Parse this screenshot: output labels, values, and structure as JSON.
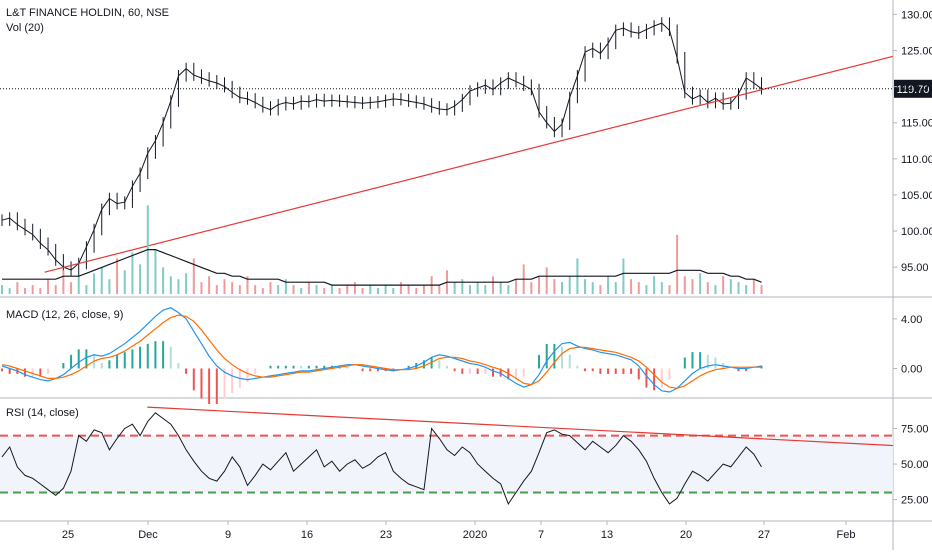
{
  "chart_data": {
    "type": "line",
    "symbol_title": "L&T FINANCE HOLDIN, 60, NSE",
    "volume_label": "Vol (20)",
    "last_price_label": "119.70",
    "x_ticks": [
      "25",
      "Dec",
      "9",
      "16",
      "23",
      "2020",
      "7",
      "13",
      "20",
      "27",
      "Feb"
    ],
    "price_axis": {
      "ticks": [
        "130.00",
        "125.00",
        "120.00",
        "115.00",
        "110.00",
        "105.00",
        "100.00",
        "95.00"
      ],
      "range": [
        91,
        132
      ]
    },
    "price_series": {
      "name": "Close",
      "values": [
        101.5,
        101.8,
        100.9,
        100.2,
        99.5,
        98.3,
        97.4,
        96.0,
        95.0,
        94.6,
        95.5,
        97.8,
        100.2,
        103.0,
        104.5,
        103.8,
        104.0,
        106.2,
        108.0,
        110.8,
        112.5,
        115.0,
        118.0,
        121.5,
        122.5,
        121.6,
        121.2,
        120.8,
        120.5,
        120.0,
        119.2,
        118.5,
        118.3,
        117.8,
        117.2,
        116.8,
        117.5,
        117.8,
        117.6,
        118.0,
        117.9,
        118.2,
        118.0,
        118.1,
        118.0,
        117.9,
        117.8,
        117.7,
        117.8,
        117.9,
        118.1,
        118.3,
        118.2,
        118.0,
        117.8,
        117.6,
        117.2,
        116.9,
        116.8,
        117.3,
        118.2,
        119.4,
        119.8,
        120.2,
        119.6,
        120.5,
        121.2,
        120.7,
        120.2,
        119.6,
        116.5,
        115.0,
        113.8,
        114.8,
        118.5,
        121.5,
        124.8,
        125.3,
        124.6,
        126.0,
        127.8,
        128.1,
        127.6,
        127.4,
        127.9,
        128.4,
        128.8,
        127.8,
        124.0,
        119.2,
        118.3,
        118.8,
        117.8,
        118.4,
        117.6,
        117.7,
        119.0,
        121.2,
        120.5,
        119.7
      ]
    },
    "trendline_price": {
      "from": [
        0.05,
        94.3
      ],
      "to": [
        1.0,
        124.2
      ]
    },
    "volume_series": {
      "name": "Volume",
      "values": [
        3,
        2,
        4,
        2,
        3,
        2,
        5,
        3,
        8,
        4,
        6,
        3,
        7,
        9,
        5,
        12,
        8,
        14,
        10,
        30,
        15,
        9,
        6,
        5,
        7,
        12,
        4,
        6,
        3,
        5,
        4,
        3,
        6,
        3,
        2,
        4,
        3,
        5,
        3,
        2,
        4,
        3,
        2,
        3,
        2,
        3,
        4,
        2,
        3,
        2,
        3,
        2,
        4,
        3,
        2,
        3,
        6,
        3,
        8,
        4,
        5,
        3,
        4,
        3,
        6,
        4,
        3,
        5,
        10,
        4,
        6,
        9,
        5,
        4,
        6,
        12,
        5,
        4,
        3,
        6,
        4,
        12,
        5,
        4,
        3,
        6,
        4,
        3,
        20,
        6,
        5,
        7,
        4,
        3,
        6,
        5,
        4,
        3,
        5,
        3
      ],
      "ma": [
        5,
        5,
        5,
        5,
        5,
        5,
        5,
        5,
        6,
        6,
        6,
        7,
        8,
        9,
        10,
        11,
        12,
        13,
        14,
        15,
        15,
        14,
        13,
        12,
        11,
        10,
        9,
        8,
        7,
        7,
        6,
        6,
        5,
        5,
        5,
        5,
        5,
        4,
        4,
        4,
        4,
        4,
        4,
        3,
        3,
        3,
        3,
        3,
        3,
        3,
        3,
        3,
        3,
        3,
        3,
        3,
        3,
        3,
        4,
        4,
        4,
        4,
        4,
        4,
        4,
        4,
        4,
        5,
        5,
        5,
        6,
        6,
        6,
        6,
        6,
        6,
        6,
        6,
        6,
        6,
        6,
        7,
        7,
        7,
        7,
        7,
        7,
        7,
        8,
        8,
        8,
        8,
        7,
        7,
        7,
        6,
        6,
        5,
        5,
        4
      ],
      "range": [
        0,
        90
      ]
    },
    "macd": {
      "legend": "MACD (12, 26, close, 9)",
      "ticks": [
        "4.00",
        "0.00"
      ],
      "range": [
        -2.3,
        5.6
      ],
      "macd_values": [
        0.2,
        0.0,
        -0.2,
        -0.5,
        -0.7,
        -0.9,
        -1.0,
        -0.8,
        -0.5,
        0.0,
        0.5,
        0.9,
        1.1,
        1.0,
        1.2,
        1.6,
        2.0,
        2.5,
        3.0,
        3.6,
        4.2,
        4.7,
        4.9,
        4.5,
        4.0,
        3.0,
        2.0,
        1.0,
        0.2,
        -0.3,
        -0.6,
        -0.8,
        -0.9,
        -0.8,
        -0.7,
        -0.6,
        -0.5,
        -0.4,
        -0.3,
        -0.2,
        -0.2,
        -0.1,
        0.0,
        0.1,
        0.2,
        0.3,
        0.3,
        0.2,
        0.1,
        0.0,
        -0.1,
        -0.2,
        -0.1,
        0.0,
        0.2,
        0.5,
        0.9,
        1.1,
        1.0,
        0.8,
        0.6,
        0.4,
        0.3,
        0.1,
        -0.2,
        -0.4,
        -0.8,
        -1.2,
        -1.5,
        -1.3,
        -0.5,
        0.6,
        1.4,
        2.0,
        2.1,
        1.8,
        1.6,
        1.5,
        1.3,
        1.2,
        1.1,
        0.9,
        0.7,
        0.2,
        -0.6,
        -1.3,
        -1.8,
        -1.9,
        -1.6,
        -1.0,
        -0.4,
        0.0,
        0.2,
        0.3,
        0.2,
        0.1,
        0.0,
        0.0,
        0.1,
        0.2
      ],
      "signal_values": [
        0.3,
        0.2,
        0.0,
        -0.2,
        -0.4,
        -0.6,
        -0.8,
        -0.8,
        -0.7,
        -0.5,
        -0.2,
        0.2,
        0.6,
        0.8,
        0.9,
        1.1,
        1.4,
        1.8,
        2.2,
        2.7,
        3.2,
        3.7,
        4.1,
        4.3,
        4.2,
        3.8,
        3.1,
        2.3,
        1.5,
        0.8,
        0.3,
        -0.1,
        -0.4,
        -0.6,
        -0.7,
        -0.7,
        -0.6,
        -0.5,
        -0.4,
        -0.3,
        -0.3,
        -0.2,
        -0.1,
        0.0,
        0.1,
        0.2,
        0.3,
        0.3,
        0.2,
        0.1,
        0.0,
        -0.1,
        -0.1,
        -0.1,
        0.0,
        0.2,
        0.5,
        0.8,
        0.9,
        0.9,
        0.8,
        0.6,
        0.5,
        0.3,
        0.1,
        -0.1,
        -0.4,
        -0.8,
        -1.2,
        -1.3,
        -1.0,
        -0.3,
        0.5,
        1.2,
        1.6,
        1.7,
        1.7,
        1.6,
        1.5,
        1.4,
        1.3,
        1.1,
        0.9,
        0.6,
        0.1,
        -0.5,
        -1.1,
        -1.5,
        -1.6,
        -1.4,
        -1.0,
        -0.6,
        -0.3,
        -0.1,
        0.0,
        0.1,
        0.1,
        0.1,
        0.1,
        0.1
      ]
    },
    "rsi": {
      "legend": "RSI (14, close)",
      "ticks": [
        "75.00",
        "50.00",
        "25.00"
      ],
      "range": [
        10,
        95
      ],
      "upper_band": 70,
      "lower_band": 30,
      "values": [
        55,
        62,
        48,
        42,
        40,
        36,
        32,
        28,
        33,
        45,
        70,
        66,
        74,
        72,
        60,
        68,
        75,
        78,
        70,
        80,
        86,
        82,
        78,
        70,
        60,
        52,
        45,
        40,
        38,
        45,
        55,
        48,
        35,
        42,
        50,
        46,
        52,
        58,
        45,
        50,
        55,
        60,
        48,
        52,
        45,
        50,
        53,
        47,
        50,
        55,
        58,
        45,
        40,
        36,
        34,
        32,
        75,
        68,
        60,
        56,
        62,
        58,
        50,
        45,
        40,
        36,
        22,
        30,
        38,
        45,
        58,
        72,
        74,
        71,
        70,
        65,
        60,
        66,
        62,
        58,
        63,
        70,
        66,
        60,
        52,
        40,
        30,
        22,
        26,
        36,
        45,
        42,
        38,
        44,
        50,
        48,
        55,
        62,
        57,
        48
      ],
      "trendline": {
        "from": [
          0.165,
          90
        ],
        "to": [
          1.0,
          63
        ]
      }
    }
  }
}
